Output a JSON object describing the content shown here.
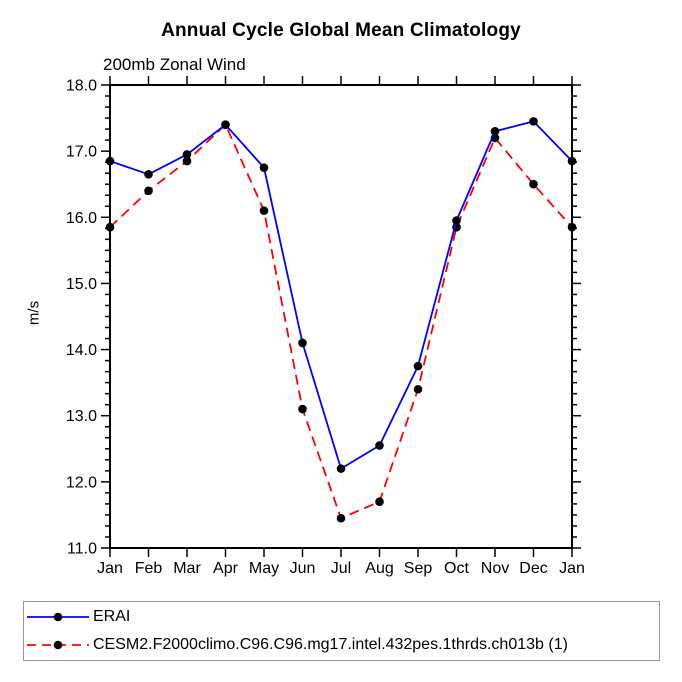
{
  "page": {
    "background": "#ffffff",
    "text_color": "#000000"
  },
  "chart_data": {
    "type": "line",
    "title": "Annual Cycle Global Mean Climatology",
    "subtitle": "200mb Zonal Wind",
    "xlabel": "",
    "ylabel": "m/s",
    "categories": [
      "Jan",
      "Feb",
      "Mar",
      "Apr",
      "May",
      "Jun",
      "Jul",
      "Aug",
      "Sep",
      "Oct",
      "Nov",
      "Dec",
      "Jan"
    ],
    "ylim": [
      11.0,
      18.0
    ],
    "yticks": [
      11.0,
      12.0,
      13.0,
      14.0,
      15.0,
      16.0,
      17.0,
      18.0
    ],
    "ytick_decimals": 1,
    "minor_ticks_per_major": 5,
    "grid": false,
    "axis_color": "#000000",
    "marker": "filled-circle",
    "marker_color": "#000000",
    "legend_position": "bottom-left",
    "series": [
      {
        "name": "ERAI",
        "color": "#0000ff",
        "line_style": "solid",
        "values": [
          16.85,
          16.65,
          16.95,
          17.4,
          16.75,
          14.1,
          12.2,
          12.55,
          13.75,
          15.95,
          17.3,
          17.45,
          16.85
        ]
      },
      {
        "name": "CESM2.F2000climo.C96.C96.mg17.intel.432pes.1thrds.ch013b (1)",
        "color": "#ff0000",
        "line_style": "dashed",
        "values": [
          15.85,
          16.4,
          16.85,
          17.4,
          16.1,
          13.1,
          11.45,
          11.7,
          13.4,
          15.85,
          17.2,
          16.5,
          15.85
        ]
      }
    ]
  }
}
